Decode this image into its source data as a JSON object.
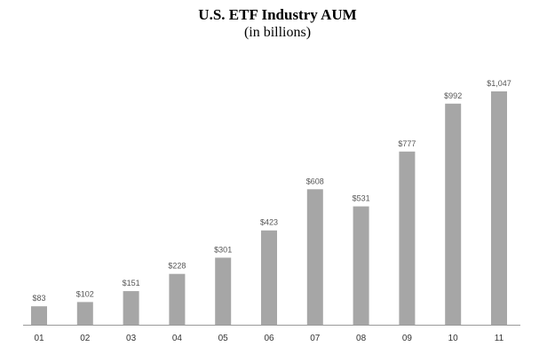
{
  "chart_data": {
    "type": "bar",
    "title": "U.S. ETF Industry AUM",
    "subtitle": "(in billions)",
    "categories": [
      "01",
      "02",
      "03",
      "04",
      "05",
      "06",
      "07",
      "08",
      "09",
      "10",
      "11"
    ],
    "values": [
      83,
      102,
      151,
      228,
      301,
      423,
      608,
      531,
      777,
      992,
      1047
    ],
    "value_labels": [
      "$83",
      "$102",
      "$151",
      "$228",
      "$301",
      "$423",
      "$608",
      "$531",
      "$777",
      "$992",
      "$1,047"
    ],
    "xlabel": "",
    "ylabel": "",
    "ylim": [
      0,
      1100
    ],
    "grid": false,
    "bar_color": "#a6a6a6"
  }
}
